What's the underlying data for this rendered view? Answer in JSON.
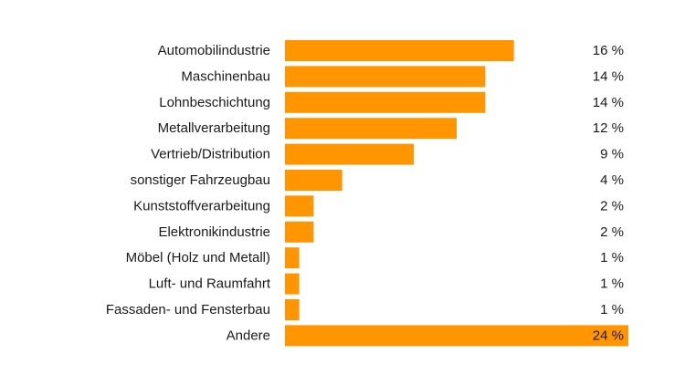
{
  "chart_data": {
    "type": "bar",
    "orientation": "horizontal",
    "title": "",
    "xlabel": "",
    "ylabel": "",
    "xlim": [
      0,
      24
    ],
    "grid": false,
    "legend": "none",
    "bar_color": "#ff9500",
    "categories": [
      "Automobilindustrie",
      "Maschinenbau",
      "Lohnbeschichtung",
      "Metallverarbeitung",
      "Vertrieb/Distribution",
      "sonstiger Fahrzeugbau",
      "Kunststoffverarbeitung",
      "Elektronikindustrie",
      "Möbel (Holz und Metall)",
      "Luft- und Raumfahrt",
      "Fassaden- und Fensterbau",
      "Andere"
    ],
    "values": [
      16,
      14,
      14,
      12,
      9,
      4,
      2,
      2,
      1,
      1,
      1,
      24
    ],
    "value_labels": [
      "16 %",
      "14 %",
      "14 %",
      "12 %",
      "9 %",
      "4 %",
      "2 %",
      "2 %",
      "1 %",
      "1 %",
      "1 %",
      "24 %"
    ]
  }
}
